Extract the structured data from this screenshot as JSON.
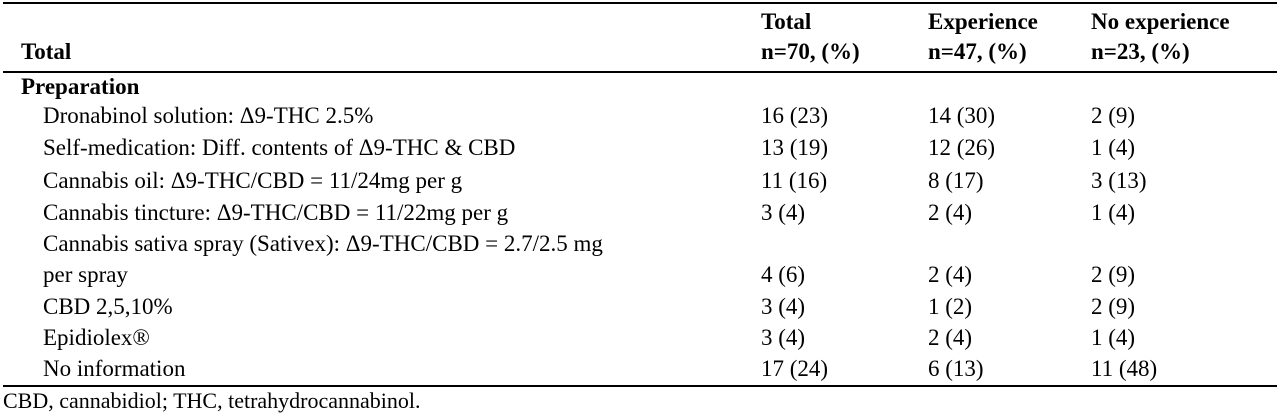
{
  "table": {
    "header": {
      "col0": "Total",
      "col1_line1": "Total",
      "col1_line2": "n=70, (%)",
      "col2_line1": "Experience",
      "col2_line2": "n=47, (%)",
      "col3_line1": "No experience",
      "col3_line2": "n=23, (%)"
    },
    "section_label": "Preparation",
    "rows": [
      {
        "label": "Dronabinol solution: Δ9-THC 2.5%",
        "total": "16 (23)",
        "experience": "14 (30)",
        "no_experience": "2 (9)"
      },
      {
        "label": "Self-medication: Diff. contents of Δ9-THC & CBD",
        "total": "13 (19)",
        "experience": "12 (26)",
        "no_experience": "1 (4)"
      },
      {
        "label": "Cannabis oil: Δ9-THC/CBD = 11/24mg per g",
        "total": "11 (16)",
        "experience": "8 (17)",
        "no_experience": "3 (13)"
      },
      {
        "label": "Cannabis tincture: Δ9-THC/CBD = 11/22mg per g",
        "total": "3 (4)",
        "experience": "2 (4)",
        "no_experience": "1 (4)"
      },
      {
        "label": "Cannabis sativa spray (Sativex): Δ9-THC/CBD = 2.7/2.5 mg",
        "total": "",
        "experience": "",
        "no_experience": ""
      },
      {
        "label": "per spray",
        "total": "4 (6)",
        "experience": "2 (4)",
        "no_experience": "2 (9)"
      },
      {
        "label": "CBD 2,5,10%",
        "total": "3 (4)",
        "experience": "1 (2)",
        "no_experience": "2 (9)"
      },
      {
        "label": "Epidiolex®",
        "total": "3 (4)",
        "experience": "2 (4)",
        "no_experience": "1 (4)"
      },
      {
        "label": "No information",
        "total": "17 (24)",
        "experience": "6 (13)",
        "no_experience": "11 (48)"
      }
    ],
    "footnote": "CBD, cannabidiol; THC, tetrahydrocannabinol."
  }
}
